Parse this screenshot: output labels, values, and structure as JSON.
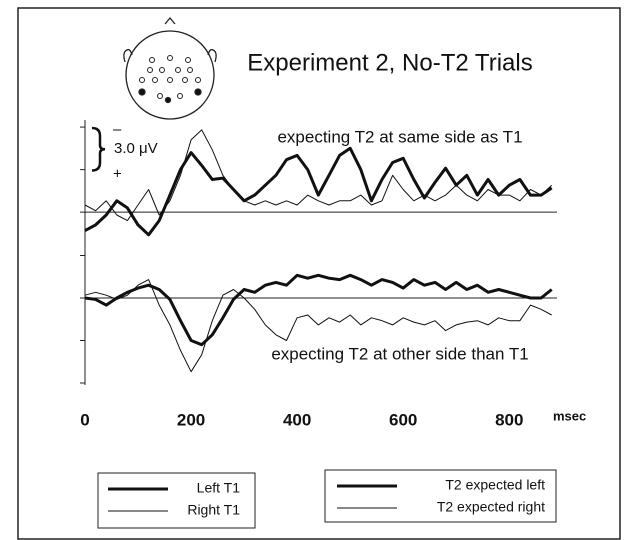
{
  "chart_data": {
    "type": "line",
    "title": "Experiment 2, No-T2 Trials",
    "xlabel": "msec",
    "xlim": [
      0,
      890
    ],
    "xticks": [
      0,
      200,
      400,
      600,
      800
    ],
    "x": [
      0,
      20,
      40,
      60,
      80,
      100,
      120,
      140,
      160,
      180,
      200,
      220,
      240,
      260,
      280,
      300,
      320,
      340,
      360,
      380,
      400,
      420,
      440,
      460,
      480,
      500,
      520,
      540,
      560,
      580,
      600,
      620,
      640,
      660,
      680,
      700,
      720,
      740,
      760,
      780,
      800,
      820,
      840,
      860,
      880
    ],
    "invert_y": true,
    "scale_bar": {
      "value": 3,
      "label": "3.0 μV",
      "minus": "–",
      "plus": "+"
    },
    "panels": [
      {
        "annotation": "expecting T2 at same side as T1",
        "ylim": [
          -6.5,
          2.7
        ],
        "yticks": [
          -6,
          -3,
          0
        ],
        "series": [
          {
            "name": "Left T1",
            "color": "#111111",
            "width": 3,
            "values": [
              1.3,
              0.9,
              0.2,
              -0.8,
              -0.3,
              0.9,
              1.6,
              0.6,
              -1.2,
              -3.0,
              -4.2,
              -3.3,
              -2.3,
              -2.4,
              -1.6,
              -0.8,
              -1.2,
              -1.9,
              -2.6,
              -3.7,
              -4.0,
              -3.0,
              -1.2,
              -2.6,
              -4.0,
              -4.5,
              -3.0,
              -0.8,
              -2.3,
              -3.5,
              -3.8,
              -2.3,
              -1.0,
              -2.1,
              -3.1,
              -1.9,
              -2.6,
              -1.2,
              -2.3,
              -1.2,
              -1.9,
              -2.3,
              -1.2,
              -1.2,
              -1.7
            ]
          },
          {
            "name": "Right T1",
            "color": "#111111",
            "width": 1,
            "values": [
              -0.5,
              -0.1,
              -0.8,
              0.2,
              0.6,
              -0.5,
              -1.6,
              0.2,
              -0.8,
              -2.6,
              -5.1,
              -5.8,
              -4.4,
              -2.6,
              -1.6,
              -0.8,
              -0.5,
              -0.8,
              -0.5,
              -0.8,
              -0.5,
              -1.2,
              -0.8,
              -0.5,
              -0.8,
              -0.8,
              -1.2,
              -0.5,
              -0.8,
              -2.6,
              -1.6,
              -0.8,
              -1.2,
              -0.8,
              -1.2,
              -1.9,
              -1.2,
              -0.8,
              -1.6,
              -1.2,
              -1.2,
              -0.8,
              -1.6,
              -1.2,
              -1.9
            ]
          }
        ]
      },
      {
        "annotation": "expecting T2 at other side than T1",
        "ylim": [
          -3,
          6.1
        ],
        "yticks": [
          -3,
          0,
          3,
          6
        ],
        "series": [
          {
            "name": "T2 expected left",
            "color": "#111111",
            "width": 3,
            "values": [
              0,
              0.1,
              0.5,
              0,
              -0.4,
              -0.7,
              -0.9,
              -0.6,
              0.1,
              1.6,
              3.0,
              3.3,
              2.6,
              1.4,
              0.1,
              -0.6,
              -0.4,
              -0.9,
              -1.1,
              -0.9,
              -1.6,
              -1.4,
              -1.6,
              -1.4,
              -1.3,
              -1.6,
              -1.3,
              -0.9,
              -1.3,
              -1.1,
              -0.7,
              -1.3,
              -0.9,
              -1.1,
              -0.6,
              -1.1,
              -0.6,
              -0.9,
              -0.4,
              -0.6,
              -0.4,
              -0.2,
              0,
              0,
              -0.6
            ]
          },
          {
            "name": "T2 expected right",
            "color": "#111111",
            "width": 1,
            "values": [
              -0.2,
              -0.4,
              -0.2,
              0.1,
              -0.2,
              -0.9,
              -1.3,
              0.5,
              1.9,
              3.7,
              5.2,
              4.0,
              1.6,
              -0.2,
              -0.6,
              0,
              0.8,
              1.9,
              2.6,
              3.0,
              1.4,
              1.2,
              1.9,
              1.4,
              1.7,
              1.2,
              1.9,
              1.4,
              1.6,
              1.9,
              1.4,
              1.7,
              1.9,
              1.6,
              2.3,
              1.9,
              1.7,
              1.6,
              1.9,
              1.4,
              1.6,
              1.6,
              0.5,
              0.8,
              1.2
            ]
          }
        ]
      }
    ]
  }
}
